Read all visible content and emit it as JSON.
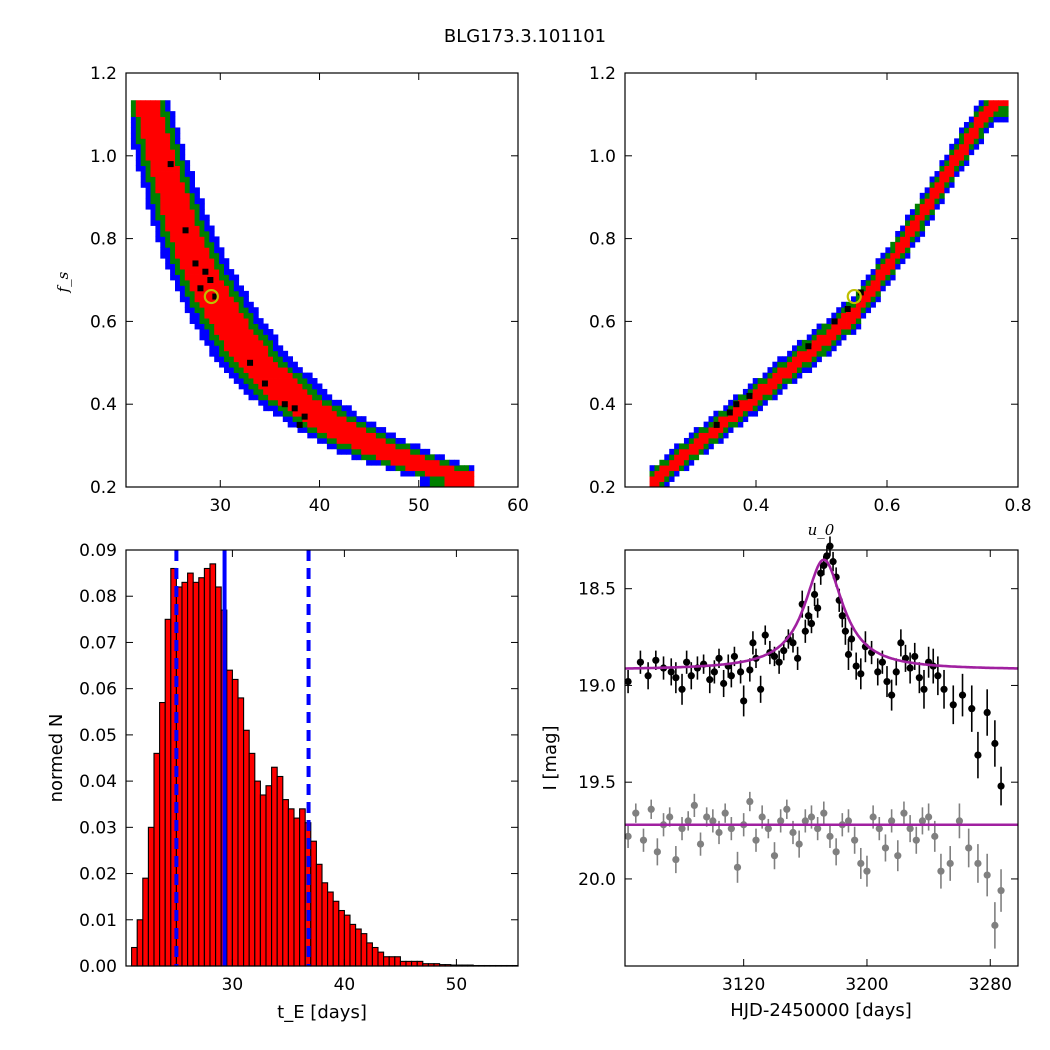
{
  "figure_title": "BLG173.3.101101",
  "colors": {
    "density_outer": "#0000ff",
    "density_mid": "#008000",
    "density_inner": "#ff0000",
    "density_peak": "#000000",
    "best_fit_marker": "#bfbf00",
    "histogram_fill": "#ff0000",
    "histogram_edge": "#000000",
    "percentile_lines": "#0000ff",
    "model_curve": "#a020a0",
    "magnified_points": "#000000",
    "baseline_points": "#808080"
  },
  "chart_data": [
    {
      "id": "fs_vs_tE",
      "type": "heatmap",
      "title": "",
      "xlabel": "",
      "ylabel": "f_s",
      "xlim": [
        20.5,
        60
      ],
      "ylim": [
        0.2,
        1.2
      ],
      "xticks": [
        "30",
        "40",
        "50",
        "60"
      ],
      "yticks": [
        "0.2",
        "0.4",
        "0.6",
        "0.8",
        "1.0",
        "1.2"
      ],
      "levels": [
        "outer",
        "mid",
        "inner",
        "peak"
      ],
      "ridge": [
        [
          22.5,
          1.14
        ],
        [
          24,
          1.0
        ],
        [
          26,
          0.84
        ],
        [
          28,
          0.72
        ],
        [
          30,
          0.63
        ],
        [
          33,
          0.52
        ],
        [
          37,
          0.42
        ],
        [
          42,
          0.34
        ],
        [
          47,
          0.28
        ],
        [
          52,
          0.24
        ],
        [
          55,
          0.22
        ]
      ],
      "half_widths_days": {
        "outer": 3.8,
        "mid": 2.9,
        "inner": 2.0
      },
      "peak_cells": [
        [
          28.5,
          0.72
        ],
        [
          27.5,
          0.74
        ],
        [
          29,
          0.7
        ],
        [
          28,
          0.68
        ],
        [
          29.5,
          0.66
        ],
        [
          25,
          0.98
        ],
        [
          26.5,
          0.82
        ],
        [
          33,
          0.5
        ],
        [
          36.5,
          0.4
        ],
        [
          37.5,
          0.39
        ],
        [
          38.5,
          0.37
        ],
        [
          38,
          0.35
        ],
        [
          34.5,
          0.45
        ]
      ],
      "best_fit": [
        29.1,
        0.66
      ]
    },
    {
      "id": "fs_vs_u0",
      "type": "heatmap",
      "title": "",
      "xlabel": "u_0",
      "ylabel": "",
      "xlim": [
        0.2,
        0.8
      ],
      "ylim": [
        0.2,
        1.2
      ],
      "xticks": [
        "0.4",
        "0.6",
        "0.8"
      ],
      "yticks": [
        "0.2",
        "0.4",
        "0.6",
        "0.8",
        "1.0",
        "1.2"
      ],
      "levels": [
        "outer",
        "mid",
        "inner",
        "peak"
      ],
      "ridge": [
        [
          0.24,
          0.21
        ],
        [
          0.3,
          0.29
        ],
        [
          0.4,
          0.42
        ],
        [
          0.5,
          0.55
        ],
        [
          0.55,
          0.62
        ],
        [
          0.6,
          0.73
        ],
        [
          0.65,
          0.85
        ],
        [
          0.7,
          0.98
        ],
        [
          0.75,
          1.1
        ],
        [
          0.77,
          1.14
        ]
      ],
      "half_widths_fs": {
        "outer": 0.05,
        "mid": 0.038,
        "inner": 0.022
      },
      "peak_cells": [
        [
          0.34,
          0.35
        ],
        [
          0.36,
          0.38
        ],
        [
          0.37,
          0.4
        ],
        [
          0.39,
          0.42
        ],
        [
          0.48,
          0.54
        ],
        [
          0.52,
          0.6
        ],
        [
          0.54,
          0.63
        ],
        [
          0.56,
          0.67
        ]
      ],
      "best_fit": [
        0.55,
        0.66
      ]
    },
    {
      "id": "tE_histogram",
      "type": "bar",
      "title": "",
      "xlabel": "t_E [days]",
      "ylabel": "normed N",
      "xlim": [
        20.5,
        55.5
      ],
      "ylim": [
        0,
        0.09
      ],
      "xticks": [
        "30",
        "40",
        "50"
      ],
      "yticks": [
        "0.00",
        "0.01",
        "0.02",
        "0.03",
        "0.04",
        "0.05",
        "0.06",
        "0.07",
        "0.08",
        "0.09"
      ],
      "bin_width": 0.5,
      "bin_start": 21.0,
      "values": [
        0.004,
        0.01,
        0.019,
        0.03,
        0.046,
        0.057,
        0.075,
        0.086,
        0.082,
        0.083,
        0.085,
        0.083,
        0.084,
        0.086,
        0.087,
        0.082,
        0.077,
        0.064,
        0.062,
        0.058,
        0.051,
        0.046,
        0.04,
        0.037,
        0.039,
        0.043,
        0.041,
        0.036,
        0.034,
        0.032,
        0.034,
        0.031,
        0.027,
        0.022,
        0.018,
        0.016,
        0.014,
        0.012,
        0.011,
        0.009,
        0.008,
        0.007,
        0.005,
        0.004,
        0.003,
        0.002,
        0.002,
        0.002,
        0.001,
        0.001,
        0.001,
        0.001,
        0.0005,
        0.0005,
        0.0005,
        0.0003,
        0.0003,
        0.0002,
        0.0002,
        0.0002,
        0.0002,
        0.0001,
        0.0001,
        0.0001,
        0.0001,
        0.0001,
        0.0001,
        0.0001,
        0.0001,
        0.0001
      ],
      "median": 29.3,
      "percentile_low": 25.0,
      "percentile_high": 36.8
    },
    {
      "id": "light_curve",
      "type": "scatter",
      "title": "",
      "xlabel": "HJD-2450000 [days]",
      "ylabel": "I [mag]",
      "xlim": [
        3043,
        3298
      ],
      "ylim": [
        20.45,
        18.3
      ],
      "xticks": [
        "3120",
        "3200",
        "3280"
      ],
      "yticks": [
        "18.5",
        "19.0",
        "19.5",
        "20.0"
      ],
      "model": {
        "t0": 3172,
        "baseline": 18.92,
        "peak_mag": 18.35,
        "width_days": 15
      },
      "baseline_model": 19.72,
      "series": [
        {
          "name": "magnified",
          "x": [
            3045,
            3053,
            3058,
            3063,
            3068,
            3073,
            3076,
            3080,
            3083,
            3086,
            3090,
            3094,
            3098,
            3101,
            3104,
            3107,
            3110,
            3112,
            3114,
            3118,
            3120,
            3124,
            3126,
            3128,
            3131,
            3134,
            3137,
            3140,
            3143,
            3146,
            3149,
            3152,
            3155,
            3158,
            3160,
            3162,
            3164,
            3166,
            3168,
            3170,
            3172,
            3174,
            3176,
            3178,
            3180,
            3182,
            3184,
            3186,
            3188,
            3190,
            3193,
            3196,
            3199,
            3203,
            3207,
            3210,
            3213,
            3216,
            3219,
            3222,
            3225,
            3228,
            3231,
            3234,
            3237,
            3240,
            3243,
            3246,
            3250,
            3256,
            3262,
            3268,
            3272,
            3278,
            3283,
            3287
          ],
          "y": [
            18.98,
            18.88,
            18.95,
            18.87,
            18.91,
            18.93,
            18.96,
            19.02,
            18.88,
            18.95,
            18.91,
            18.89,
            18.97,
            18.93,
            18.86,
            18.99,
            18.9,
            18.95,
            18.85,
            18.93,
            19.08,
            18.92,
            18.78,
            18.86,
            19.02,
            18.74,
            18.83,
            18.85,
            18.88,
            18.82,
            18.76,
            18.78,
            18.86,
            18.58,
            18.72,
            18.64,
            18.68,
            18.53,
            18.6,
            18.42,
            18.38,
            18.33,
            18.28,
            18.36,
            18.44,
            18.56,
            18.64,
            18.72,
            18.84,
            18.76,
            18.9,
            18.94,
            18.8,
            18.83,
            18.93,
            18.88,
            18.98,
            19.05,
            18.93,
            18.78,
            18.86,
            18.91,
            18.85,
            18.96,
            19.02,
            18.88,
            18.9,
            18.95,
            19.02,
            19.1,
            19.05,
            19.12,
            19.36,
            19.14,
            19.3,
            19.52
          ],
          "errors": [
            0.06,
            0.06,
            0.07,
            0.05,
            0.06,
            0.07,
            0.08,
            0.08,
            0.06,
            0.07,
            0.06,
            0.05,
            0.07,
            0.06,
            0.05,
            0.07,
            0.06,
            0.06,
            0.05,
            0.06,
            0.08,
            0.06,
            0.06,
            0.05,
            0.07,
            0.05,
            0.06,
            0.05,
            0.06,
            0.05,
            0.05,
            0.05,
            0.06,
            0.07,
            0.06,
            0.05,
            0.05,
            0.06,
            0.05,
            0.06,
            0.05,
            0.05,
            0.05,
            0.05,
            0.05,
            0.06,
            0.06,
            0.07,
            0.08,
            0.06,
            0.07,
            0.08,
            0.08,
            0.06,
            0.07,
            0.06,
            0.08,
            0.08,
            0.07,
            0.07,
            0.07,
            0.08,
            0.07,
            0.08,
            0.1,
            0.08,
            0.09,
            0.1,
            0.1,
            0.1,
            0.11,
            0.12,
            0.12,
            0.12,
            0.12,
            0.1
          ]
        },
        {
          "name": "baseline",
          "x": [
            3045,
            3050,
            3055,
            3060,
            3064,
            3068,
            3072,
            3076,
            3080,
            3084,
            3088,
            3092,
            3096,
            3100,
            3104,
            3108,
            3112,
            3116,
            3120,
            3124,
            3128,
            3132,
            3136,
            3140,
            3144,
            3148,
            3152,
            3156,
            3160,
            3164,
            3168,
            3172,
            3176,
            3180,
            3184,
            3188,
            3192,
            3196,
            3200,
            3204,
            3208,
            3212,
            3216,
            3220,
            3224,
            3228,
            3232,
            3236,
            3240,
            3244,
            3248,
            3254,
            3260,
            3266,
            3272,
            3278,
            3283,
            3287
          ],
          "y": [
            19.78,
            19.66,
            19.8,
            19.64,
            19.86,
            19.72,
            19.68,
            19.9,
            19.74,
            19.7,
            19.62,
            19.82,
            19.68,
            19.7,
            19.76,
            19.66,
            19.74,
            19.94,
            19.72,
            19.6,
            19.8,
            19.68,
            19.74,
            19.88,
            19.7,
            19.64,
            19.76,
            19.82,
            19.7,
            19.68,
            19.74,
            19.66,
            19.78,
            19.86,
            19.72,
            19.7,
            19.8,
            19.92,
            19.96,
            19.68,
            19.74,
            19.84,
            19.7,
            19.88,
            19.66,
            19.74,
            19.8,
            19.7,
            19.68,
            19.78,
            19.96,
            19.92,
            19.7,
            19.84,
            19.92,
            19.98,
            20.24,
            20.06
          ],
          "errors": [
            0.06,
            0.05,
            0.06,
            0.05,
            0.07,
            0.06,
            0.05,
            0.07,
            0.06,
            0.05,
            0.06,
            0.06,
            0.05,
            0.06,
            0.06,
            0.05,
            0.06,
            0.08,
            0.06,
            0.05,
            0.06,
            0.06,
            0.05,
            0.07,
            0.06,
            0.05,
            0.06,
            0.07,
            0.06,
            0.06,
            0.06,
            0.06,
            0.06,
            0.07,
            0.06,
            0.06,
            0.07,
            0.08,
            0.08,
            0.06,
            0.06,
            0.07,
            0.06,
            0.08,
            0.06,
            0.07,
            0.07,
            0.07,
            0.07,
            0.08,
            0.09,
            0.09,
            0.09,
            0.1,
            0.1,
            0.11,
            0.12,
            0.11
          ]
        }
      ]
    }
  ]
}
